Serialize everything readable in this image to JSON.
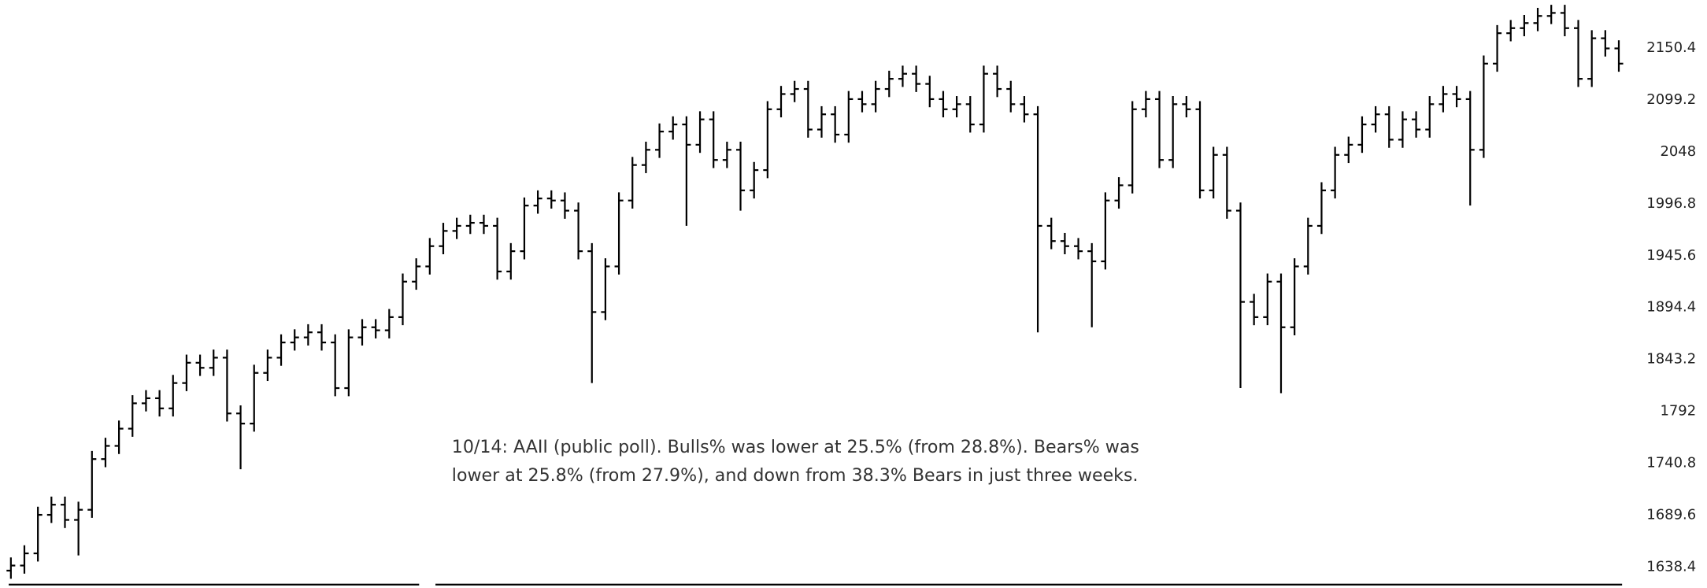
{
  "chart_data": {
    "type": "ohlc",
    "color": "#000000",
    "annotation": [
      "10/14: AAII (public poll). Bulls% was lower at 25.5% (from 28.8%). Bears% was",
      "lower at 25.8% (from 27.9%), and down from 38.3% Bears in just three weeks."
    ],
    "ylim": [
      1618,
      2197.6
    ],
    "yticks": [
      1638.4,
      1689.6,
      1740.8,
      1792,
      1843.2,
      1894.4,
      1945.6,
      1996.8,
      2048,
      2099.2,
      2150.4
    ],
    "grid": false,
    "open": [
      1635,
      1640,
      1652,
      1690,
      1700,
      1685,
      1695,
      1745,
      1758,
      1775,
      1800,
      1805,
      1795,
      1820,
      1840,
      1835,
      1845,
      1790,
      1780,
      1830,
      1845,
      1860,
      1865,
      1870,
      1860,
      1815,
      1865,
      1875,
      1872,
      1885,
      1920,
      1935,
      1955,
      1970,
      1975,
      1978,
      1975,
      1930,
      1950,
      1995,
      2002,
      2000,
      1990,
      1950,
      1890,
      1935,
      2000,
      2035,
      2050,
      2068,
      2075,
      2055,
      2080,
      2040,
      2050,
      2010,
      2030,
      2090,
      2105,
      2110,
      2070,
      2085,
      2065,
      2100,
      2095,
      2110,
      2120,
      2125,
      2115,
      2100,
      2090,
      2095,
      2075,
      2125,
      2110,
      2095,
      2085,
      1975,
      1960,
      1955,
      1950,
      1940,
      2000,
      2015,
      2090,
      2100,
      2040,
      2095,
      2090,
      2010,
      2045,
      1990,
      1900,
      1885,
      1920,
      1875,
      1935,
      1975,
      2010,
      2045,
      2055,
      2075,
      2085,
      2060,
      2080,
      2070,
      2095,
      2105,
      2100,
      2050,
      2135,
      2165,
      2170,
      2175,
      2182,
      2185,
      2170,
      2120,
      2160,
      2150
    ],
    "high": [
      1648,
      1660,
      1698,
      1708,
      1708,
      1703,
      1753,
      1766,
      1783,
      1808,
      1813,
      1813,
      1828,
      1848,
      1848,
      1853,
      1853,
      1798,
      1838,
      1853,
      1868,
      1873,
      1878,
      1878,
      1868,
      1873,
      1883,
      1883,
      1893,
      1928,
      1943,
      1963,
      1978,
      1983,
      1986,
      1986,
      1983,
      1958,
      2003,
      2010,
      2010,
      2008,
      1998,
      1958,
      1943,
      2008,
      2043,
      2058,
      2076,
      2083,
      2083,
      2088,
      2088,
      2058,
      2058,
      2038,
      2098,
      2113,
      2118,
      2118,
      2093,
      2093,
      2108,
      2108,
      2118,
      2128,
      2133,
      2133,
      2123,
      2108,
      2103,
      2103,
      2133,
      2133,
      2118,
      2103,
      2093,
      1983,
      1968,
      1963,
      1958,
      2008,
      2023,
      2098,
      2108,
      2108,
      2103,
      2103,
      2098,
      2053,
      2053,
      1998,
      1908,
      1928,
      1928,
      1943,
      1983,
      2018,
      2053,
      2063,
      2083,
      2093,
      2093,
      2088,
      2088,
      2103,
      2113,
      2113,
      2108,
      2143,
      2173,
      2178,
      2183,
      2190,
      2193,
      2193,
      2178,
      2168,
      2168,
      2158
    ],
    "low": [
      1627,
      1632,
      1644,
      1682,
      1677,
      1650,
      1687,
      1737,
      1750,
      1767,
      1792,
      1787,
      1787,
      1812,
      1827,
      1827,
      1782,
      1735,
      1772,
      1822,
      1837,
      1852,
      1857,
      1852,
      1807,
      1807,
      1857,
      1864,
      1864,
      1877,
      1912,
      1927,
      1947,
      1962,
      1967,
      1967,
      1922,
      1922,
      1942,
      1987,
      1992,
      1982,
      1942,
      1820,
      1882,
      1927,
      1992,
      2027,
      2042,
      2060,
      1975,
      2047,
      2032,
      2032,
      1990,
      2002,
      2022,
      2082,
      2097,
      2062,
      2062,
      2057,
      2057,
      2087,
      2087,
      2102,
      2112,
      2107,
      2092,
      2082,
      2082,
      2067,
      2067,
      2102,
      2087,
      2077,
      1870,
      1952,
      1947,
      1942,
      1875,
      1932,
      1992,
      2007,
      2082,
      2032,
      2032,
      2082,
      2002,
      2002,
      1982,
      1815,
      1877,
      1877,
      1810,
      1867,
      1927,
      1967,
      2002,
      2037,
      2047,
      2067,
      2052,
      2052,
      2062,
      2062,
      2087,
      2092,
      1995,
      2042,
      2127,
      2157,
      2162,
      2167,
      2174,
      2162,
      2112,
      2112,
      2142,
      2127
    ],
    "close": [
      1640,
      1652,
      1690,
      1700,
      1685,
      1695,
      1745,
      1758,
      1775,
      1800,
      1805,
      1795,
      1820,
      1840,
      1835,
      1845,
      1790,
      1780,
      1830,
      1845,
      1860,
      1865,
      1870,
      1860,
      1815,
      1865,
      1875,
      1872,
      1885,
      1920,
      1935,
      1955,
      1970,
      1975,
      1978,
      1975,
      1930,
      1950,
      1995,
      2002,
      2000,
      1990,
      1950,
      1890,
      1935,
      2000,
      2035,
      2050,
      2068,
      2075,
      2055,
      2080,
      2040,
      2050,
      2010,
      2030,
      2090,
      2105,
      2110,
      2070,
      2085,
      2065,
      2100,
      2095,
      2110,
      2120,
      2125,
      2115,
      2100,
      2090,
      2095,
      2075,
      2125,
      2110,
      2095,
      2085,
      1975,
      1960,
      1955,
      1950,
      1940,
      2000,
      2015,
      2090,
      2100,
      2040,
      2095,
      2090,
      2010,
      2045,
      1990,
      1900,
      1885,
      1920,
      1875,
      1935,
      1975,
      2010,
      2045,
      2055,
      2075,
      2085,
      2060,
      2080,
      2070,
      2095,
      2105,
      2100,
      2050,
      2135,
      2165,
      2170,
      2175,
      2182,
      2185,
      2170,
      2120,
      2160,
      2150,
      2135
    ]
  }
}
